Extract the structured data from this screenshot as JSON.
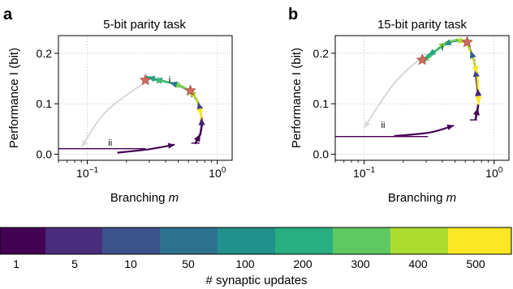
{
  "chart_data": [
    {
      "type": "line",
      "panel_label": "a",
      "title": "5-bit parity task",
      "xlabel_text": "Branching ",
      "xlabel_symbol": "m",
      "ylabel": "Performance I (bit)",
      "x_scale": "log",
      "xlim": [
        0.06,
        1.3
      ],
      "ylim": [
        -0.012,
        0.235
      ],
      "grid": true,
      "x_ticks": [
        {
          "value": 0.1,
          "base": "10",
          "exp": "−1"
        },
        {
          "value": 1,
          "base": "10",
          "exp": "0"
        }
      ],
      "y_ticks": [
        {
          "value": 0,
          "label": "0.0"
        },
        {
          "value": 0.1,
          "label": "0.1"
        },
        {
          "value": 0.2,
          "label": "0.2"
        }
      ],
      "annotations": [
        {
          "text": "i",
          "x": 0.43,
          "y": 0.142
        },
        {
          "text": "ii",
          "x": 0.15,
          "y": 0.017
        }
      ],
      "series": [
        {
          "role": "trajectory",
          "colors": [
            "#440154",
            "#482475",
            "#414487",
            "#355f8d",
            "#2a788e",
            "#21918c",
            "#22a884",
            "#44bf70",
            "#7ad151",
            "#bddf26",
            "#fde725"
          ],
          "points": [
            {
              "x": 0.68,
              "y": 0.022
            },
            {
              "x": 0.74,
              "y": 0.04
            },
            {
              "x": 0.76,
              "y": 0.058
            },
            {
              "x": 0.755,
              "y": 0.072
            },
            {
              "x": 0.74,
              "y": 0.088
            },
            {
              "x": 0.71,
              "y": 0.103
            },
            {
              "x": 0.66,
              "y": 0.117
            },
            {
              "x": 0.6,
              "y": 0.127
            },
            {
              "x": 0.5,
              "y": 0.137
            },
            {
              "x": 0.43,
              "y": 0.142
            },
            {
              "x": 0.37,
              "y": 0.146
            },
            {
              "x": 0.33,
              "y": 0.149
            },
            {
              "x": 0.3,
              "y": 0.152
            },
            {
              "x": 0.29,
              "y": 0.153
            },
            {
              "x": 0.34,
              "y": 0.147
            },
            {
              "x": 0.39,
              "y": 0.144
            },
            {
              "x": 0.46,
              "y": 0.14
            },
            {
              "x": 0.55,
              "y": 0.133
            },
            {
              "x": 0.63,
              "y": 0.124
            },
            {
              "x": 0.69,
              "y": 0.11
            },
            {
              "x": 0.73,
              "y": 0.093
            },
            {
              "x": 0.75,
              "y": 0.076
            },
            {
              "x": 0.745,
              "y": 0.066
            }
          ]
        },
        {
          "role": "return-path",
          "label": "i",
          "color": "#d8d8d8",
          "points": [
            {
              "x": 0.29,
              "y": 0.146
            },
            {
              "x": 0.14,
              "y": 0.085
            },
            {
              "x": 0.09,
              "y": 0.014
            }
          ]
        },
        {
          "role": "return-path",
          "label": "ii",
          "color": "#440154",
          "points": [
            {
              "x": 0.17,
              "y": 0.003
            },
            {
              "x": 0.3,
              "y": 0.01
            },
            {
              "x": 0.47,
              "y": 0.019
            }
          ]
        }
      ],
      "horizontal_markers": [
        {
          "y": 0.011,
          "x_from": 0.06,
          "x_to": 0.28,
          "color": "#440154"
        },
        {
          "y": 0.022,
          "x_from": 0.63,
          "x_to": 0.73,
          "color": "#440154"
        },
        {
          "y": 0.058,
          "x_from": 0.74,
          "x_to": 0.78,
          "color": "#2a788e"
        },
        {
          "y": 0.123,
          "x_from": 0.62,
          "x_to": 0.66,
          "color": "#7ad151"
        }
      ],
      "stars": [
        {
          "x": 0.28,
          "y": 0.147
        },
        {
          "x": 0.62,
          "y": 0.126
        }
      ],
      "star_color": "#cd6b5e"
    },
    {
      "type": "line",
      "panel_label": "b",
      "title": "15-bit parity task",
      "xlabel_text": "Branching ",
      "xlabel_symbol": "m",
      "ylabel": "Performance I (bit)",
      "x_scale": "log",
      "xlim": [
        0.06,
        1.3
      ],
      "ylim": [
        -0.012,
        0.235
      ],
      "grid": true,
      "x_ticks": [
        {
          "value": 0.1,
          "base": "10",
          "exp": "−1"
        },
        {
          "value": 1,
          "base": "10",
          "exp": "0"
        }
      ],
      "y_ticks": [
        {
          "value": 0,
          "label": "0.0"
        },
        {
          "value": 0.1,
          "label": "0.1"
        },
        {
          "value": 0.2,
          "label": "0.2"
        }
      ],
      "annotations": [
        {
          "text": "i",
          "x": 0.4,
          "y": 0.205
        },
        {
          "text": "ii",
          "x": 0.14,
          "y": 0.052
        }
      ],
      "series": [
        {
          "role": "trajectory",
          "colors": [
            "#440154",
            "#482475",
            "#414487",
            "#355f8d",
            "#2a788e",
            "#21918c",
            "#22a884",
            "#44bf70",
            "#7ad151",
            "#bddf26",
            "#fde725"
          ],
          "points": [
            {
              "x": 0.72,
              "y": 0.07
            },
            {
              "x": 0.75,
              "y": 0.092
            },
            {
              "x": 0.76,
              "y": 0.11
            },
            {
              "x": 0.745,
              "y": 0.13
            },
            {
              "x": 0.73,
              "y": 0.15
            },
            {
              "x": 0.72,
              "y": 0.168
            },
            {
              "x": 0.7,
              "y": 0.186
            },
            {
              "x": 0.66,
              "y": 0.205
            },
            {
              "x": 0.62,
              "y": 0.222
            },
            {
              "x": 0.56,
              "y": 0.226
            },
            {
              "x": 0.48,
              "y": 0.224
            },
            {
              "x": 0.41,
              "y": 0.216
            },
            {
              "x": 0.36,
              "y": 0.206
            },
            {
              "x": 0.31,
              "y": 0.196
            },
            {
              "x": 0.29,
              "y": 0.188
            },
            {
              "x": 0.32,
              "y": 0.193
            },
            {
              "x": 0.37,
              "y": 0.209
            },
            {
              "x": 0.43,
              "y": 0.222
            },
            {
              "x": 0.52,
              "y": 0.227
            },
            {
              "x": 0.61,
              "y": 0.222
            },
            {
              "x": 0.68,
              "y": 0.196
            },
            {
              "x": 0.74,
              "y": 0.16
            },
            {
              "x": 0.76,
              "y": 0.118
            },
            {
              "x": 0.755,
              "y": 0.1
            }
          ]
        },
        {
          "role": "return-path",
          "label": "i",
          "color": "#d8d8d8",
          "points": [
            {
              "x": 0.3,
              "y": 0.2
            },
            {
              "x": 0.17,
              "y": 0.14
            },
            {
              "x": 0.1,
              "y": 0.052
            }
          ]
        },
        {
          "role": "return-path",
          "label": "ii",
          "color": "#440154",
          "points": [
            {
              "x": 0.17,
              "y": 0.036
            },
            {
              "x": 0.32,
              "y": 0.043
            },
            {
              "x": 0.49,
              "y": 0.057
            }
          ]
        }
      ],
      "horizontal_markers": [
        {
          "y": 0.035,
          "x_from": 0.06,
          "x_to": 0.31,
          "color": "#440154"
        },
        {
          "y": 0.068,
          "x_from": 0.65,
          "x_to": 0.74,
          "color": "#440154"
        },
        {
          "y": 0.157,
          "x_from": 0.71,
          "x_to": 0.75,
          "color": "#2a788e"
        },
        {
          "y": 0.187,
          "x_from": 0.27,
          "x_to": 0.32,
          "color": "#7ad151"
        }
      ],
      "stars": [
        {
          "x": 0.28,
          "y": 0.187
        },
        {
          "x": 0.62,
          "y": 0.222
        }
      ],
      "star_color": "#cd6b5e"
    }
  ],
  "colorbar": {
    "label": "# synaptic updates",
    "tick_labels": [
      "1",
      "5",
      "10",
      "50",
      "100",
      "200",
      "300",
      "400",
      "500"
    ],
    "colors": [
      "#440154",
      "#472d7b",
      "#3b528b",
      "#2c728e",
      "#21918c",
      "#28ae80",
      "#5ec962",
      "#addc30",
      "#fde725"
    ]
  }
}
